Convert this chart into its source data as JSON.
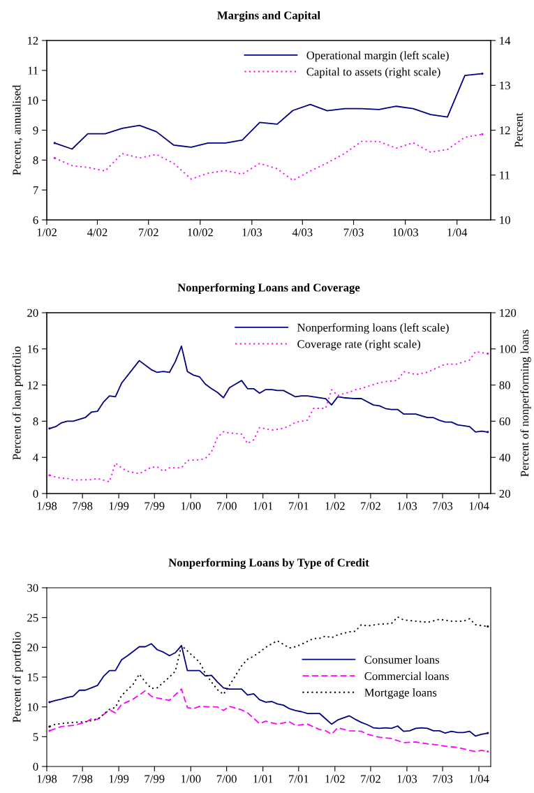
{
  "chart_data": [
    {
      "type": "line",
      "title": "Margins and Capital",
      "ylabel": "Percent, annualised",
      "y2label": "Percent",
      "x": [
        "2002-01-15",
        "2002-02-15",
        "2002-03-15",
        "2002-04-15",
        "2002-05-15",
        "2002-06-15",
        "2002-07-15",
        "2002-08-15",
        "2002-09-15",
        "2002-10-15",
        "2002-11-15",
        "2002-12-15",
        "2003-01-15",
        "2003-02-15",
        "2003-03-15",
        "2003-04-15",
        "2003-05-15",
        "2003-06-15",
        "2003-07-15",
        "2003-08-15",
        "2003-09-15",
        "2003-10-15",
        "2003-11-15",
        "2003-12-15",
        "2004-01-15",
        "2004-02-15"
      ],
      "series": [
        {
          "name": "Operational margin (left scale)",
          "color": "#000080",
          "line_style": "solid",
          "values": [
            8.57,
            8.37,
            8.88,
            8.88,
            9.06,
            9.16,
            8.95,
            8.5,
            8.43,
            8.57,
            8.57,
            8.67,
            9.26,
            9.2,
            9.66,
            9.86,
            9.65,
            9.72,
            9.72,
            9.69,
            9.8,
            9.72,
            9.52,
            9.44,
            10.83,
            10.89
          ]
        },
        {
          "name": "Capital to assets (right scale)",
          "color": "#ff00ff",
          "line_style": "dotted",
          "axis": "y2",
          "values": [
            11.38,
            11.21,
            11.17,
            11.09,
            11.48,
            11.38,
            11.46,
            11.26,
            10.91,
            11.04,
            11.1,
            11.02,
            11.26,
            11.14,
            10.88,
            11.09,
            11.27,
            11.48,
            11.75,
            11.75,
            11.6,
            11.72,
            11.51,
            11.57,
            11.84,
            11.91
          ]
        }
      ],
      "xlim": [
        "2002-01-01",
        "2004-03-01"
      ],
      "xticks": [
        {
          "value": "2002-01-01",
          "label": "1/02"
        },
        {
          "value": "2002-04-01",
          "label": "4/02"
        },
        {
          "value": "2002-07-01",
          "label": "7/02"
        },
        {
          "value": "2002-10-01",
          "label": "10/02"
        },
        {
          "value": "2003-01-01",
          "label": "1/03"
        },
        {
          "value": "2003-04-01",
          "label": "4/03"
        },
        {
          "value": "2003-07-01",
          "label": "7/03"
        },
        {
          "value": "2003-10-01",
          "label": "10/03"
        },
        {
          "value": "2004-01-01",
          "label": "1/04"
        }
      ],
      "ylim": [
        6,
        12
      ],
      "yticks": [
        6,
        7,
        8,
        9,
        10,
        11,
        12
      ],
      "y2lim": [
        10,
        14
      ],
      "y2ticks": [
        10,
        11,
        12,
        13,
        14
      ],
      "legend": "top right",
      "grid": false
    },
    {
      "type": "line",
      "title": "Nonperforming Loans and Coverage",
      "ylabel": "Percent of loan portfolio",
      "y2label": "Percent of nonperforming loans",
      "series": [
        {
          "name": "Nonperforming loans (left scale)",
          "color": "#000080",
          "line_style": "solid",
          "x": [
            "1998-01-15",
            "1998-02-15",
            "1998-03-15",
            "1998-04-15",
            "1998-05-15",
            "1998-07-15",
            "1998-08-15",
            "1998-09-15",
            "1998-10-15",
            "1998-11-15",
            "1998-12-15",
            "1999-01-15",
            "1999-04-15",
            "1999-06-15",
            "1999-07-15",
            "1999-08-15",
            "1999-09-15",
            "1999-10-15",
            "1999-11-15",
            "1999-12-15",
            "2000-01-15",
            "2000-02-15",
            "2000-03-15",
            "2000-04-15",
            "2000-05-15",
            "2000-06-15",
            "2000-07-15",
            "2000-08-15",
            "2000-09-15",
            "2000-10-15",
            "2000-11-15",
            "2000-12-15",
            "2001-01-15",
            "2001-02-15",
            "2001-03-15",
            "2001-04-15",
            "2001-06-15",
            "2001-07-15",
            "2001-08-15",
            "2001-11-15",
            "2001-12-15",
            "2002-01-15",
            "2002-02-15",
            "2002-04-15",
            "2002-05-15",
            "2002-07-15",
            "2002-08-15",
            "2002-09-15",
            "2002-10-15",
            "2002-11-15",
            "2002-12-15",
            "2003-02-15",
            "2003-03-15",
            "2003-04-15",
            "2003-05-15",
            "2003-06-15",
            "2003-07-15",
            "2003-08-15",
            "2003-09-15",
            "2003-10-15",
            "2003-11-15",
            "2003-12-15",
            "2004-01-15",
            "2004-02-15"
          ],
          "values": [
            7.2,
            7.4,
            7.8,
            8.0,
            8.0,
            8.4,
            9.0,
            9.1,
            10.1,
            10.8,
            10.7,
            12.2,
            14.7,
            13.7,
            13.4,
            13.5,
            13.4,
            14.6,
            16.3,
            13.5,
            13.1,
            12.9,
            12.1,
            11.6,
            11.2,
            10.6,
            11.7,
            12.1,
            12.5,
            11.6,
            11.6,
            11.1,
            11.5,
            11.5,
            11.4,
            11.4,
            10.7,
            10.8,
            10.8,
            10.5,
            9.8,
            10.7,
            10.6,
            10.5,
            10.5,
            9.8,
            9.7,
            9.4,
            9.3,
            9.3,
            8.8,
            8.8,
            8.6,
            8.4,
            8.4,
            8.1,
            7.9,
            7.9,
            7.6,
            7.5,
            7.4,
            6.8,
            6.9,
            6.8
          ]
        },
        {
          "name": "Coverage rate (right scale)",
          "color": "#ff00ff",
          "line_style": "dotted",
          "axis": "y2",
          "x": [
            "1998-01-15",
            "1998-03-15",
            "1998-04-15",
            "1998-05-15",
            "1998-08-15",
            "1998-09-15",
            "1998-11-15",
            "1998-12-15",
            "1999-01-15",
            "1999-02-15",
            "1999-04-15",
            "1999-06-15",
            "1999-07-15",
            "1999-08-15",
            "1999-09-15",
            "1999-11-15",
            "1999-12-15",
            "2000-02-15",
            "2000-03-15",
            "2000-04-15",
            "2000-05-15",
            "2000-06-15",
            "2000-07-15",
            "2000-09-15",
            "2000-10-15",
            "2000-11-15",
            "2000-12-15",
            "2001-02-15",
            "2001-04-15",
            "2001-05-15",
            "2001-06-15",
            "2001-08-15",
            "2001-09-15",
            "2001-11-15",
            "2001-12-15",
            "2002-01-15",
            "2002-03-15",
            "2002-04-15",
            "2002-05-15",
            "2002-08-15",
            "2002-09-15",
            "2002-11-15",
            "2002-12-15",
            "2003-02-15",
            "2003-04-15",
            "2003-07-15",
            "2003-09-15",
            "2003-10-15",
            "2003-11-15",
            "2003-12-15",
            "2004-02-15"
          ],
          "values": [
            30.1,
            28.4,
            28.4,
            27.4,
            27.7,
            28.3,
            26.5,
            36.8,
            34.2,
            32.3,
            31.0,
            34.5,
            34.8,
            32.3,
            34.2,
            34.2,
            38.3,
            38.7,
            39.4,
            43.0,
            51.0,
            54.2,
            53.5,
            52.9,
            47.7,
            49.7,
            56.5,
            55.1,
            56.1,
            57.4,
            59.4,
            60.6,
            67.1,
            67.1,
            77.4,
            74.2,
            76.1,
            77.4,
            78.1,
            81.3,
            81.9,
            82.6,
            87.4,
            85.8,
            87.1,
            91.6,
            91.6,
            92.9,
            93.8,
            98.5,
            97.4
          ]
        }
      ],
      "xlim": [
        "1998-01-01",
        "2004-03-01"
      ],
      "xticks": [
        {
          "value": "1998-01-01",
          "label": "1/98"
        },
        {
          "value": "1998-07-01",
          "label": "7/98"
        },
        {
          "value": "1999-01-01",
          "label": "1/99"
        },
        {
          "value": "1999-07-01",
          "label": "7/99"
        },
        {
          "value": "2000-01-01",
          "label": "1/00"
        },
        {
          "value": "2000-07-01",
          "label": "7/00"
        },
        {
          "value": "2001-01-01",
          "label": "1/01"
        },
        {
          "value": "2001-07-01",
          "label": "7/01"
        },
        {
          "value": "2002-01-01",
          "label": "1/02"
        },
        {
          "value": "2002-07-01",
          "label": "7/02"
        },
        {
          "value": "2003-01-01",
          "label": "1/03"
        },
        {
          "value": "2003-07-01",
          "label": "7/03"
        },
        {
          "value": "2004-01-01",
          "label": "1/04"
        }
      ],
      "ylim": [
        0,
        20
      ],
      "yticks": [
        0,
        4,
        8,
        12,
        16,
        20
      ],
      "y2lim": [
        20,
        120
      ],
      "y2ticks": [
        20,
        40,
        60,
        80,
        100,
        120
      ],
      "legend": "top right",
      "grid": false
    },
    {
      "type": "line",
      "title": "Nonperforming Loans by Type of Credit",
      "ylabel": "Percent of portfolio",
      "series": [
        {
          "name": "Consumer loans",
          "color": "#000080",
          "line_style": "solid",
          "x": [
            "1998-01-15",
            "1998-02-15",
            "1998-03-15",
            "1998-04-15",
            "1998-05-15",
            "1998-06-15",
            "1998-07-15",
            "1998-08-15",
            "1998-09-15",
            "1998-10-15",
            "1998-11-15",
            "1998-12-15",
            "1999-01-15",
            "1999-02-15",
            "1999-03-15",
            "1999-04-15",
            "1999-05-15",
            "1999-06-15",
            "1999-07-15",
            "1999-08-15",
            "1999-09-15",
            "1999-10-15",
            "1999-11-15",
            "1999-12-15",
            "2000-01-15",
            "2000-02-15",
            "2000-03-15",
            "2000-04-15",
            "2000-05-15",
            "2000-06-15",
            "2000-07-15",
            "2000-09-15",
            "2000-10-15",
            "2000-11-15",
            "2000-12-15",
            "2001-01-15",
            "2001-02-15",
            "2001-03-15",
            "2001-04-15",
            "2001-05-15",
            "2001-06-15",
            "2001-07-15",
            "2001-08-15",
            "2001-10-15",
            "2001-11-15",
            "2001-12-15",
            "2002-01-15",
            "2002-03-15",
            "2002-04-15",
            "2002-05-15",
            "2002-06-15",
            "2002-07-15",
            "2002-08-15",
            "2002-09-15",
            "2002-10-15",
            "2002-11-15",
            "2002-12-15",
            "2003-01-15",
            "2003-02-15",
            "2003-03-15",
            "2003-04-15",
            "2003-05-15",
            "2003-06-15",
            "2003-07-15",
            "2003-08-15",
            "2003-09-15",
            "2003-10-15",
            "2003-11-15",
            "2003-12-15",
            "2004-01-15",
            "2004-02-15"
          ],
          "values": [
            10.8,
            11.1,
            11.3,
            11.6,
            11.8,
            12.8,
            12.8,
            13.2,
            13.6,
            15.1,
            16.1,
            16.1,
            17.9,
            18.6,
            19.3,
            20.1,
            20.1,
            20.6,
            19.6,
            19.2,
            18.6,
            19.1,
            20.3,
            16.1,
            16.1,
            16.1,
            15.2,
            15.3,
            14.2,
            13.2,
            13.0,
            13.0,
            12.0,
            12.2,
            11.2,
            10.8,
            10.9,
            10.5,
            10.3,
            9.7,
            9.4,
            9.2,
            8.9,
            8.9,
            8.0,
            7.1,
            7.8,
            8.5,
            7.9,
            7.4,
            7.0,
            6.5,
            6.4,
            6.5,
            6.4,
            6.8,
            5.9,
            6.0,
            6.4,
            6.5,
            6.4,
            6.0,
            6.0,
            5.6,
            5.9,
            5.7,
            5.7,
            5.9,
            5.1,
            5.4,
            5.6
          ]
        },
        {
          "name": "Commercial loans",
          "color": "#ff00ff",
          "line_style": "dashed",
          "x": [
            "1998-01-15",
            "1998-03-15",
            "1998-05-15",
            "1998-07-15",
            "1998-08-15",
            "1998-09-15",
            "1998-11-15",
            "1998-12-15",
            "1999-01-15",
            "1999-03-15",
            "1999-05-15",
            "1999-06-15",
            "1999-07-15",
            "1999-09-15",
            "1999-11-15",
            "1999-12-15",
            "2000-01-15",
            "2000-02-15",
            "2000-04-15",
            "2000-05-15",
            "2000-06-15",
            "2000-07-15",
            "2000-09-15",
            "2000-10-15",
            "2000-12-15",
            "2001-01-15",
            "2001-03-15",
            "2001-05-15",
            "2001-06-15",
            "2001-08-15",
            "2001-10-15",
            "2001-11-15",
            "2001-12-15",
            "2002-01-15",
            "2002-03-15",
            "2002-05-15",
            "2002-06-15",
            "2002-08-15",
            "2002-10-15",
            "2002-12-15",
            "2003-02-15",
            "2003-04-15",
            "2003-05-15",
            "2003-07-15",
            "2003-09-15",
            "2003-11-15",
            "2003-12-15",
            "2004-01-15",
            "2004-02-15"
          ],
          "values": [
            6.0,
            6.7,
            6.9,
            7.4,
            8.0,
            7.9,
            9.5,
            9.0,
            10.4,
            11.3,
            12.7,
            11.8,
            11.5,
            11.1,
            13.0,
            9.9,
            9.7,
            10.1,
            10.0,
            10.0,
            9.4,
            10.1,
            9.5,
            9.0,
            7.2,
            7.6,
            7.1,
            7.5,
            6.9,
            7.1,
            6.2,
            6.0,
            5.4,
            6.5,
            6.0,
            5.9,
            5.4,
            4.9,
            4.7,
            4.0,
            4.1,
            3.8,
            3.7,
            3.4,
            3.2,
            2.7,
            2.5,
            2.7,
            2.5
          ]
        },
        {
          "name": "Mortgage loans",
          "color": "#000000",
          "line_style": "dotted",
          "x": [
            "1998-01-15",
            "1998-02-15",
            "1998-05-15",
            "1998-07-15",
            "1998-09-15",
            "1998-11-15",
            "1998-12-15",
            "1999-01-15",
            "1999-03-15",
            "1999-04-15",
            "1999-05-15",
            "1999-06-15",
            "1999-07-15",
            "1999-09-15",
            "1999-10-15",
            "1999-11-15",
            "1999-12-15",
            "2000-02-15",
            "2000-03-15",
            "2000-04-15",
            "2000-05-15",
            "2000-06-15",
            "2000-07-15",
            "2000-09-15",
            "2000-10-15",
            "2000-11-15",
            "2000-12-15",
            "2001-01-15",
            "2001-02-15",
            "2001-03-15",
            "2001-04-15",
            "2001-05-15",
            "2001-06-15",
            "2001-07-15",
            "2001-09-15",
            "2001-10-15",
            "2001-11-15",
            "2001-12-15",
            "2002-01-15",
            "2002-03-15",
            "2002-04-15",
            "2002-05-15",
            "2002-06-15",
            "2002-08-15",
            "2002-10-15",
            "2002-11-15",
            "2002-12-15",
            "2003-02-15",
            "2003-04-15",
            "2003-06-15",
            "2003-08-15",
            "2003-10-15",
            "2003-11-15",
            "2003-12-15",
            "2004-02-15"
          ],
          "values": [
            6.7,
            7.1,
            7.4,
            7.5,
            7.9,
            9.6,
            9.9,
            11.9,
            13.8,
            15.5,
            14.2,
            13.1,
            13.2,
            15.0,
            16.0,
            20.3,
            19.4,
            17.5,
            15.6,
            14.2,
            12.9,
            12.1,
            13.6,
            16.9,
            18.0,
            18.5,
            19.2,
            20.0,
            20.6,
            21.1,
            20.5,
            19.9,
            20.1,
            20.5,
            21.5,
            21.5,
            21.9,
            21.6,
            22.1,
            22.6,
            22.7,
            23.8,
            23.6,
            23.9,
            24.0,
            25.1,
            24.6,
            24.4,
            24.2,
            24.7,
            24.4,
            24.4,
            24.8,
            23.8,
            23.5
          ]
        }
      ],
      "xlim": [
        "1998-01-01",
        "2004-03-01"
      ],
      "xticks": [
        {
          "value": "1998-01-01",
          "label": "1/98"
        },
        {
          "value": "1998-07-01",
          "label": "7/98"
        },
        {
          "value": "1999-01-01",
          "label": "1/99"
        },
        {
          "value": "1999-07-01",
          "label": "7/99"
        },
        {
          "value": "2000-01-01",
          "label": "1/00"
        },
        {
          "value": "2000-07-01",
          "label": "7/00"
        },
        {
          "value": "2001-01-01",
          "label": "1/01"
        },
        {
          "value": "2001-07-01",
          "label": "7/01"
        },
        {
          "value": "2002-01-01",
          "label": "1/02"
        },
        {
          "value": "2002-07-01",
          "label": "7/02"
        },
        {
          "value": "2003-01-01",
          "label": "1/03"
        },
        {
          "value": "2003-07-01",
          "label": "7/03"
        },
        {
          "value": "2004-01-01",
          "label": "1/04"
        }
      ],
      "ylim": [
        0,
        30
      ],
      "yticks": [
        0,
        5,
        10,
        15,
        20,
        25,
        30
      ],
      "legend": "center right",
      "grid": false
    }
  ]
}
